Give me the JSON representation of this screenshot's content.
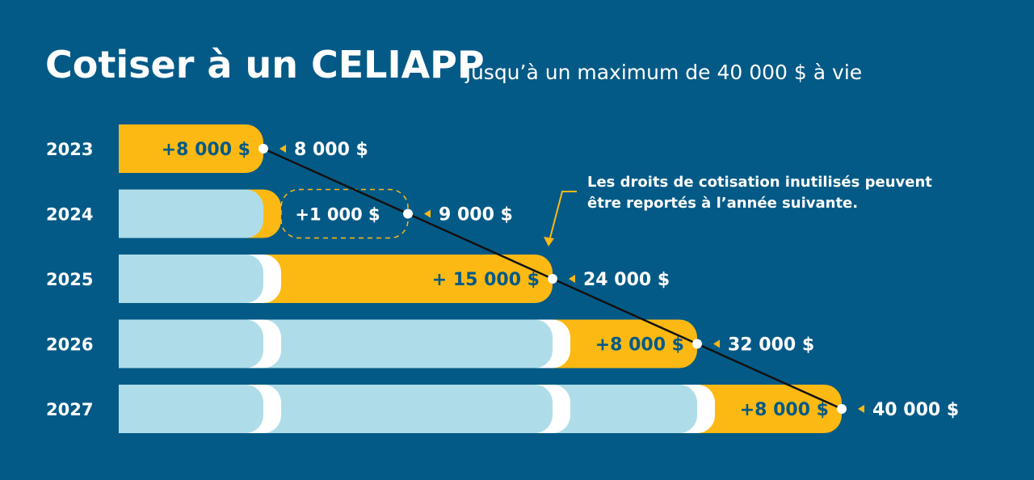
{
  "header": {
    "title": "Cotiser à un CELIAPP",
    "subtitle": "jusqu’à un maximum de 40 000 $ à vie"
  },
  "note": {
    "line1": "Les droits de cotisation inutilisés peuvent",
    "line2": "être reportés à l’année suivante."
  },
  "colors": {
    "background": "#045a87",
    "contribution": "#fdb913",
    "previous": "#aedde9",
    "unused": "#ffffff",
    "text": "#ffffff",
    "contribution_text": "#045a87",
    "line": "#111111"
  },
  "chart_data": {
    "type": "bar",
    "orientation": "horizontal",
    "stacked": true,
    "categories": [
      "2023",
      "2024",
      "2025",
      "2026",
      "2027"
    ],
    "series": [],
    "rows": [
      {
        "year": "2023",
        "added": 8000,
        "added_label": "+8 000 $",
        "cumulative": 8000,
        "cumulative_label": "8 000 $",
        "carried_over": false
      },
      {
        "year": "2024",
        "added": 1000,
        "added_label": "+1 000 $",
        "cumulative": 9000,
        "cumulative_label": "9 000 $",
        "carried_over": true
      },
      {
        "year": "2025",
        "added": 15000,
        "added_label": "+ 15 000 $",
        "cumulative": 24000,
        "cumulative_label": "24 000 $",
        "carried_over": false
      },
      {
        "year": "2026",
        "added": 8000,
        "added_label": "+8 000 $",
        "cumulative": 32000,
        "cumulative_label": "32 000 $",
        "carried_over": false
      },
      {
        "year": "2027",
        "added": 8000,
        "added_label": "+8 000 $",
        "cumulative": 40000,
        "cumulative_label": "40 000 $",
        "carried_over": false
      }
    ],
    "xlim": [
      0,
      40000
    ],
    "grid": false
  }
}
